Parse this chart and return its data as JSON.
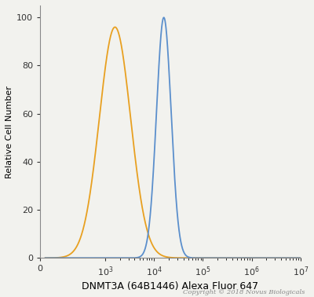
{
  "xlabel": "DNMT3A (64B1446) Alexa Fluor 647",
  "ylabel": "Relative Cell Number",
  "copyright": "Copyright © 2018 Novus Biologicals",
  "xlim_left": 0,
  "xlim_right": 10000000.0,
  "ylim": [
    0,
    105
  ],
  "yticks": [
    0,
    20,
    40,
    60,
    80,
    100
  ],
  "xticks": [
    0,
    1000.0,
    10000.0,
    100000.0,
    1000000.0,
    10000000.0
  ],
  "orange_peak_log": 3.2,
  "orange_sigma": 0.32,
  "orange_height": 96,
  "blue_peak_log": 4.2,
  "blue_sigma": 0.15,
  "blue_height": 100,
  "orange_color": "#E8A020",
  "blue_color": "#5B8FCC",
  "background_color": "#F2F2EE",
  "linewidth": 1.3,
  "xlabel_fontsize": 9,
  "ylabel_fontsize": 8,
  "tick_fontsize": 8,
  "copyright_fontsize": 6
}
